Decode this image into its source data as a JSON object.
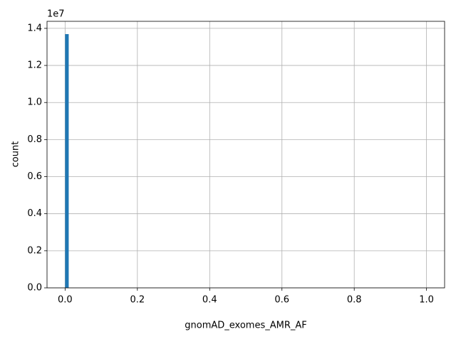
{
  "chart_data": {
    "type": "histogram",
    "xlabel": "gnomAD_exomes_AMR_AF",
    "ylabel": "count",
    "y_offset_label": "1e7",
    "color": "#1f77b4",
    "grid": true,
    "bins": [
      0,
      0.01,
      0.02,
      0.03,
      0.04,
      0.05,
      0.06,
      0.07,
      0.08,
      0.09,
      0.1,
      0.11,
      0.12,
      0.13,
      0.14,
      0.15,
      0.16,
      0.17,
      0.18,
      0.19,
      0.2,
      0.21,
      0.22,
      0.23,
      0.24,
      0.25,
      0.26,
      0.27,
      0.28,
      0.29,
      0.3,
      0.31,
      0.32,
      0.33,
      0.34,
      0.35,
      0.36,
      0.37,
      0.38,
      0.39,
      0.4,
      0.41,
      0.42,
      0.43,
      0.44,
      0.45,
      0.46,
      0.47,
      0.48,
      0.49,
      0.5,
      0.51,
      0.52,
      0.53,
      0.54,
      0.55,
      0.56,
      0.57,
      0.58,
      0.59,
      0.6,
      0.61,
      0.62,
      0.63,
      0.64,
      0.65,
      0.66,
      0.67,
      0.68,
      0.69,
      0.7,
      0.71,
      0.72,
      0.73,
      0.74,
      0.75,
      0.76,
      0.77,
      0.78,
      0.79,
      0.8,
      0.81,
      0.82,
      0.83,
      0.84,
      0.85,
      0.86,
      0.87,
      0.88,
      0.89,
      0.9,
      0.91,
      0.92,
      0.93,
      0.94,
      0.95,
      0.96,
      0.97,
      0.98,
      0.99,
      1
    ],
    "counts": [
      13690000,
      0,
      0,
      0,
      0,
      0,
      0,
      0,
      0,
      0,
      0,
      0,
      0,
      0,
      0,
      0,
      0,
      0,
      0,
      0,
      0,
      0,
      0,
      0,
      0,
      0,
      0,
      0,
      0,
      0,
      0,
      0,
      0,
      0,
      0,
      0,
      0,
      0,
      0,
      0,
      0,
      0,
      0,
      0,
      0,
      0,
      0,
      0,
      0,
      0,
      0,
      0,
      0,
      0,
      0,
      0,
      0,
      0,
      0,
      0,
      0,
      0,
      0,
      0,
      0,
      0,
      0,
      0,
      0,
      0,
      0,
      0,
      0,
      0,
      0,
      0,
      0,
      0,
      0,
      0,
      0,
      0,
      0,
      0,
      0,
      0,
      0,
      0,
      0,
      0,
      0,
      0,
      0,
      0,
      0,
      0,
      0,
      0,
      0,
      0
    ],
    "xlim": [
      -0.05,
      1.05
    ],
    "xticks": [
      {
        "value": 0,
        "label": "0.0"
      },
      {
        "value": 0.2,
        "label": "0.2"
      },
      {
        "value": 0.4,
        "label": "0.4"
      },
      {
        "value": 0.6,
        "label": "0.6"
      },
      {
        "value": 0.8,
        "label": "0.8"
      },
      {
        "value": 1,
        "label": "1.0"
      }
    ],
    "ylim": [
      0,
      14380000
    ],
    "yticks": [
      {
        "value": 0,
        "label": "0.0"
      },
      {
        "value": 2000000,
        "label": "0.2"
      },
      {
        "value": 4000000,
        "label": "0.4"
      },
      {
        "value": 6000000,
        "label": "0.6"
      },
      {
        "value": 8000000,
        "label": "0.8"
      },
      {
        "value": 10000000,
        "label": "1.0"
      },
      {
        "value": 12000000,
        "label": "1.2"
      },
      {
        "value": 14000000,
        "label": "1.4"
      }
    ]
  }
}
